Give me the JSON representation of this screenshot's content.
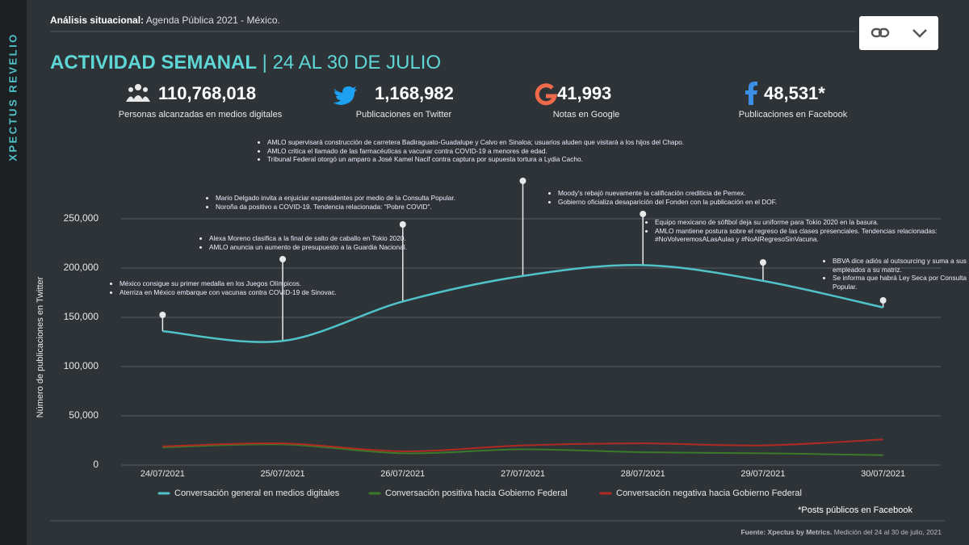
{
  "sidebar": "XPECTUS REVELIO",
  "header": {
    "label": "Análisis situacional:",
    "text": "Agenda Pública 2021 - México."
  },
  "title": {
    "main": "ACTIVIDAD SEMANAL",
    "period": "| 24 AL 30 DE JULIO"
  },
  "stats": [
    {
      "value": "110,768,018",
      "label": "Personas alcanzadas en medios digitales"
    },
    {
      "value": "1,168,982",
      "label": "Publicaciones en Twitter"
    },
    {
      "value": "41,993",
      "label": "Notas en Google"
    },
    {
      "value": "48,531*",
      "label": "Publicaciones en Facebook"
    }
  ],
  "chart_data": {
    "type": "line",
    "ylabel": "Número de publicaciones en Twitter",
    "categories": [
      "24/07/2021",
      "25/07/2021",
      "26/07/2021",
      "27/07/2021",
      "28/07/2021",
      "29/07/2021",
      "30/07/2021"
    ],
    "series": [
      {
        "name": "Conversación general en medios digitales",
        "color": "#4fc3c8",
        "values": [
          136000,
          126000,
          166000,
          192000,
          203000,
          187000,
          160000
        ]
      },
      {
        "name": "Conversación positiva hacia Gobierno Federal",
        "color": "#3a7a2a",
        "values": [
          18000,
          21000,
          12000,
          16000,
          13000,
          12000,
          10000
        ]
      },
      {
        "name": "Conversación negativa hacia Gobierno Federal",
        "color": "#b02a22",
        "values": [
          19000,
          22000,
          14000,
          20000,
          22000,
          20000,
          26000
        ]
      }
    ],
    "ylim": [
      0,
      250000
    ],
    "yticks": [
      0,
      {
        "value": 50000,
        "label": "50,000"
      },
      {
        "value": 100000,
        "label": "100,000"
      },
      {
        "value": 150000,
        "label": "150,000"
      },
      {
        "value": 200000,
        "label": "200,000"
      },
      {
        "value": 250000,
        "label": "250,000"
      }
    ],
    "grid": true,
    "annotations": [
      [
        "México consigue su primer medalla en los Juegos Olímpicos.",
        "Aterriza en México embarque con vacunas contra COVID-19 de Sinovac."
      ],
      [
        "Alexa Moreno clasifica a la final de salto de caballo en Tokio 2020.",
        "AMLO anuncia un aumento de presupuesto a la Guardia Nacional."
      ],
      [
        "Mario Delgado invita a enjuiciar  expresidentes por medio de la Consulta Popular.",
        "Noroña da positivo a COVID-19. Tendencia relacionada: \"Pobre COVID\"."
      ],
      [
        "AMLO supervisará construcción de carretera Badiraguato-Guadalupe y Calvo en Sinaloa; usuarios aluden que visitará a los hijos del Chapo.",
        "AMLO critica el llamado de las farmacéuticas a vacunar contra COVID-19 a menores de edad.",
        "Tribunal Federal otorgó un amparo a José Kamel Nacif contra captura por supuesta tortura a Lydia Cacho."
      ],
      [
        "Moody's rebajó nuevamente la calificación crediticia de Pemex.",
        "Gobierno oficializa desaparición del Fonden con la publicación en el DOF."
      ],
      [
        "Equipo mexicano de sóftbol deja su uniforme para Tokio 2020 en la basura.",
        "AMLO mantiene postura sobre el regreso de las clases presenciales. Tendencias relacionadas: #NoVolveremosALasAulas y #NoAlRegresoSinVacuna."
      ],
      [
        "BBVA dice adiós al outsourcing y suma a sus empleados a su matriz.",
        "Se informa que habrá Ley Seca por Consulta Popular."
      ]
    ]
  },
  "footnote": "*Posts públicos en Facebook",
  "source": {
    "label": "Fuente: Xpectus by Metrics.",
    "text": "Medición del 24 al 30 de julio, 2021"
  }
}
